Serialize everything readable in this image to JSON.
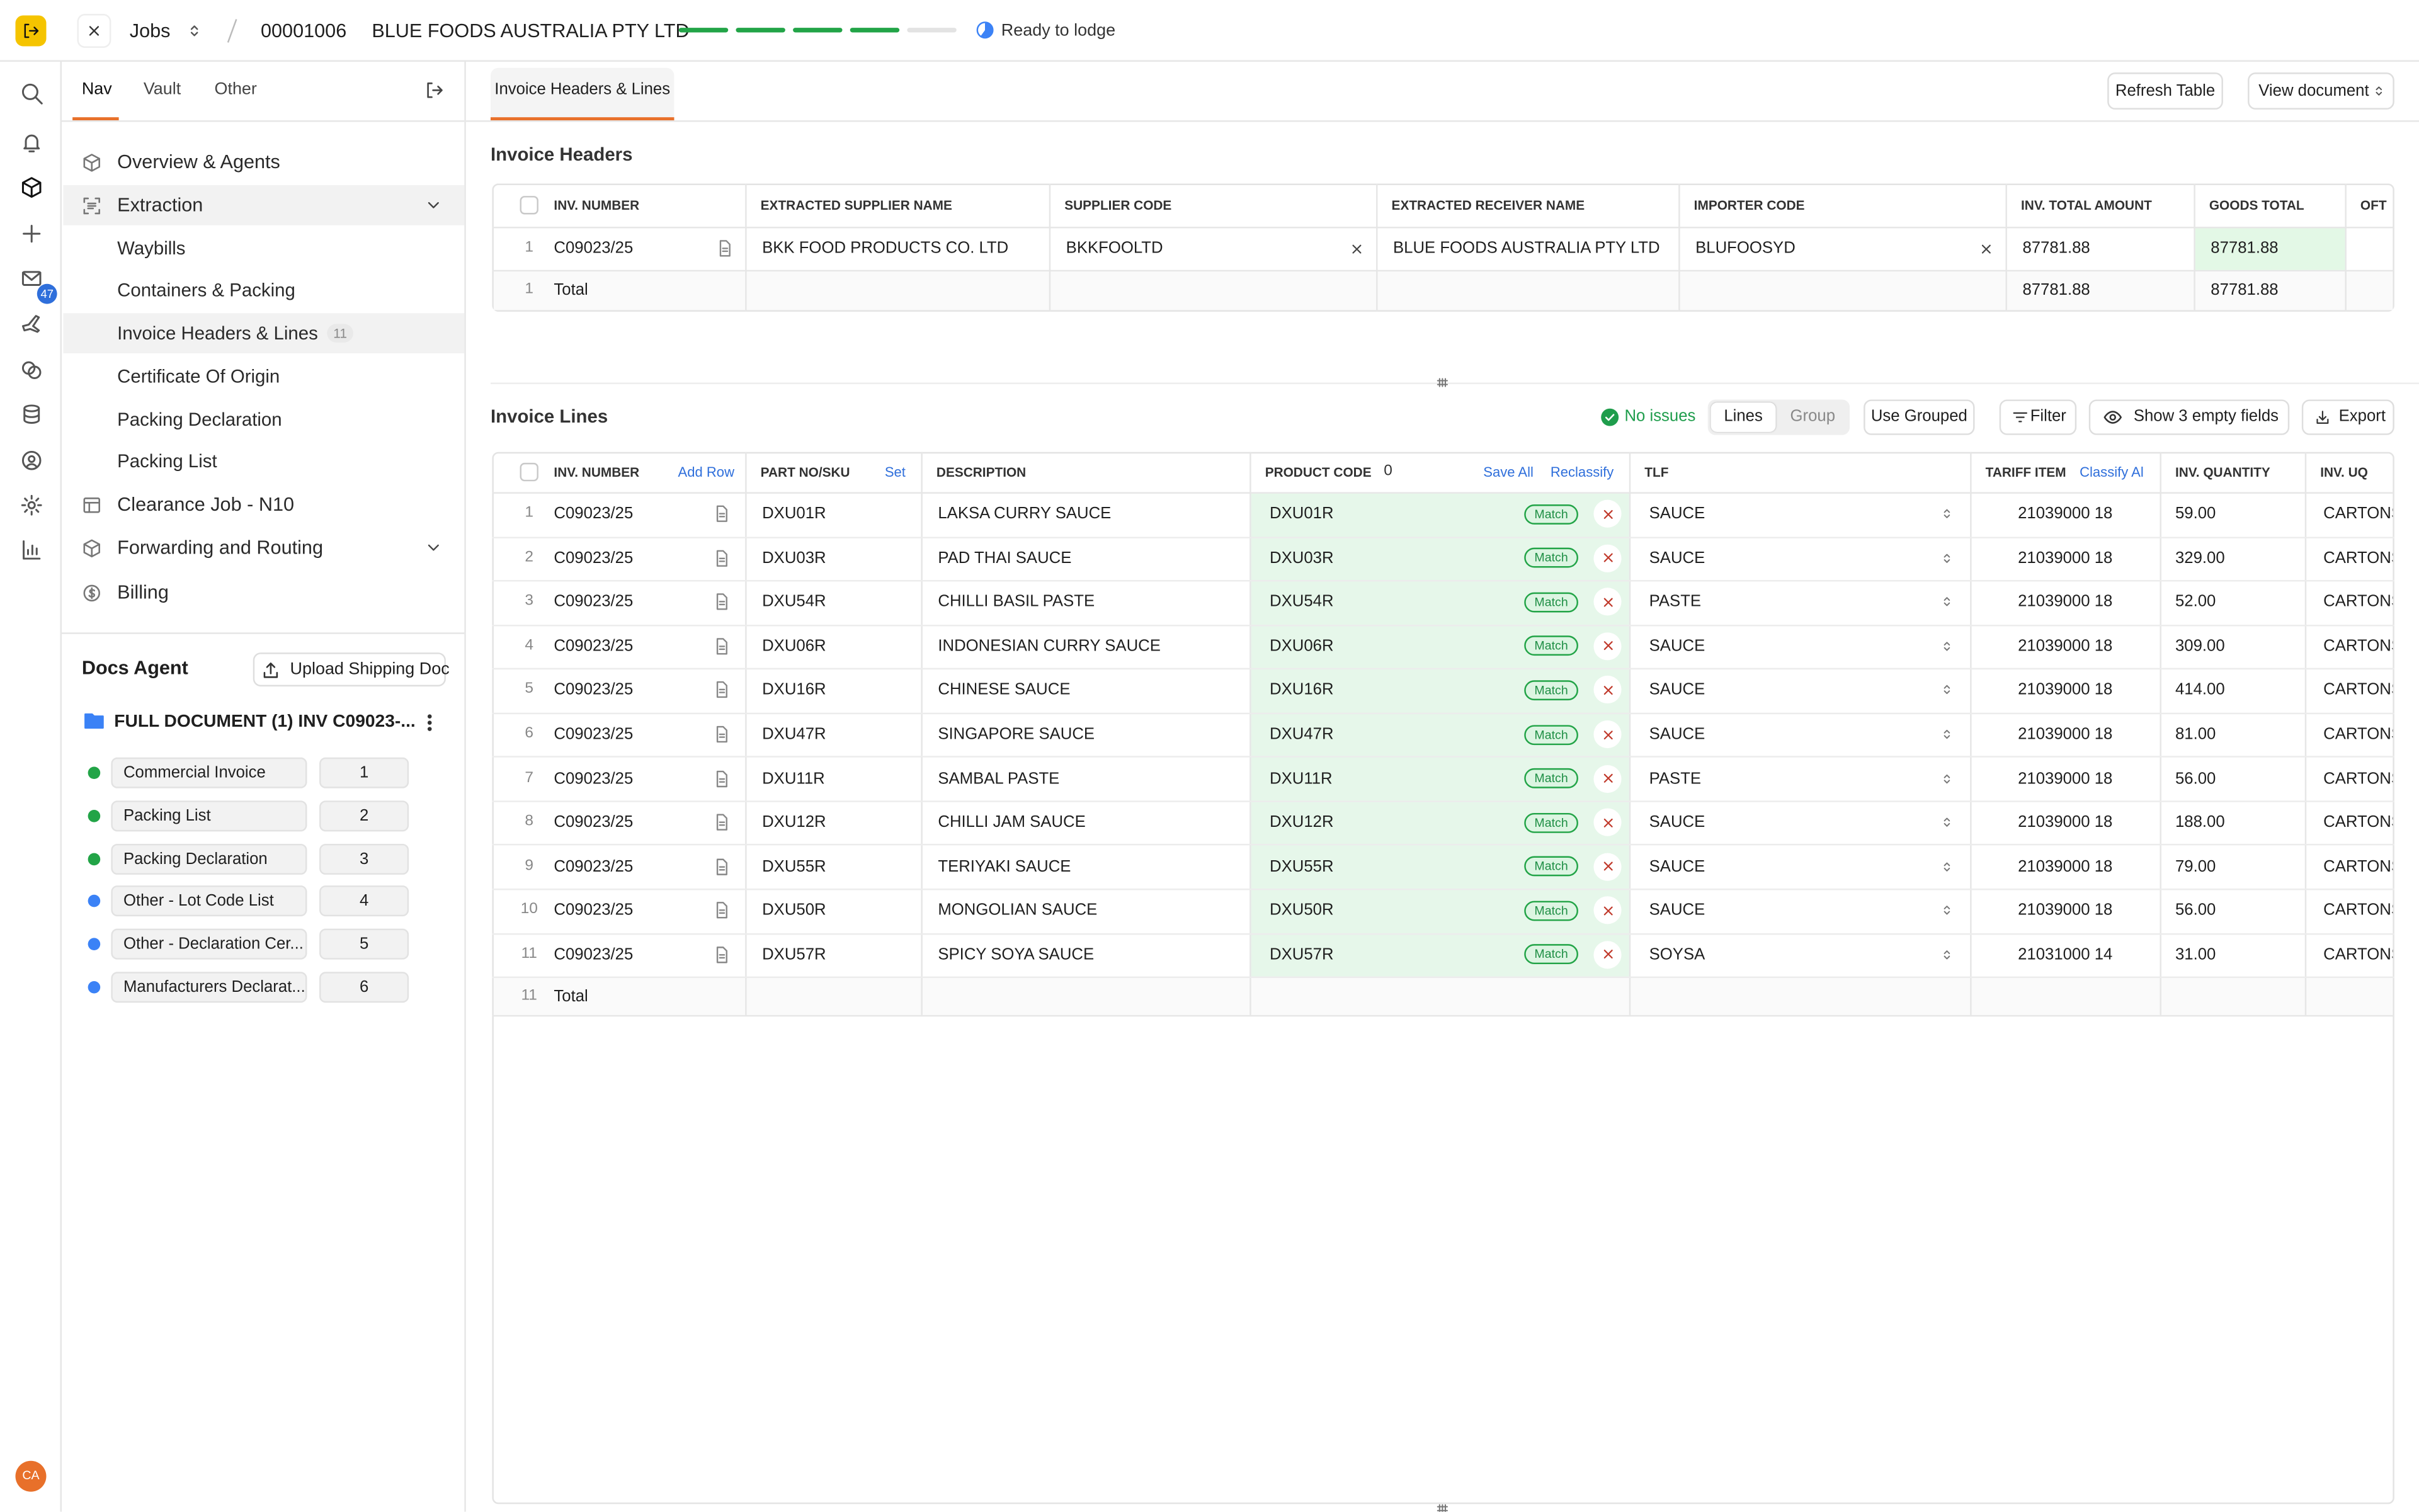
{
  "topbar": {
    "section": "Jobs",
    "job_number": "00001006",
    "company": "BLUE FOODS AUSTRALIA PTY LTD",
    "progress_steps": 5,
    "progress_done": 4,
    "status": "Ready to lodge"
  },
  "rail": {
    "badge": "47",
    "avatar": "CA"
  },
  "sidebar": {
    "tabs": [
      "Nav",
      "Vault",
      "Other"
    ],
    "nav": [
      {
        "label": "Overview & Agents",
        "level": 0
      },
      {
        "label": "Extraction",
        "level": 0,
        "expandable": true,
        "selected": true
      },
      {
        "label": "Waybills",
        "level": 1
      },
      {
        "label": "Containers & Packing",
        "level": 1
      },
      {
        "label": "Invoice Headers & Lines",
        "level": 1,
        "count": "11",
        "selected": true
      },
      {
        "label": "Certificate Of Origin",
        "level": 1
      },
      {
        "label": "Packing Declaration",
        "level": 1
      },
      {
        "label": "Packing List",
        "level": 1
      },
      {
        "label": "Clearance Job - N10",
        "level": 0
      },
      {
        "label": "Forwarding and Routing",
        "level": 0,
        "expandable": true
      },
      {
        "label": "Billing",
        "level": 0
      }
    ],
    "docs_agent": {
      "title": "Docs Agent",
      "upload": "Upload Shipping Doc",
      "folder": "FULL DOCUMENT (1) INV C09023-...",
      "docs": [
        {
          "name": "Commercial Invoice",
          "page": 1,
          "color": "#22a447"
        },
        {
          "name": "Packing List",
          "page": 2,
          "color": "#22a447"
        },
        {
          "name": "Packing Declaration",
          "page": 3,
          "color": "#22a447"
        },
        {
          "name": "Other - Lot Code List",
          "page": 4,
          "color": "#3b82f6"
        },
        {
          "name": "Other - Declaration Cer...",
          "page": 5,
          "color": "#3b82f6"
        },
        {
          "name": "Manufacturers Declarat...",
          "page": 6,
          "color": "#3b82f6"
        }
      ]
    }
  },
  "main": {
    "tab": "Invoice Headers & Lines",
    "refresh": "Refresh Table",
    "view_document": "View document",
    "headers": {
      "title": "Invoice Headers",
      "columns": [
        "INV. NUMBER",
        "EXTRACTED SUPPLIER NAME",
        "SUPPLIER CODE",
        "EXTRACTED RECEIVER NAME",
        "IMPORTER CODE",
        "INV. TOTAL AMOUNT",
        "GOODS TOTAL",
        "OFT"
      ],
      "row": {
        "index": 1,
        "inv_number": "C09023/25",
        "cells": [
          "BKK FOOD PRODUCTS CO. LTD",
          "BKKFOOLTD",
          "BLUE FOODS AUSTRALIA PTY LTD",
          "BLUFOOSYD",
          87781.88,
          87781.88
        ]
      },
      "total": {
        "count": 1,
        "label": "Total",
        "inv_total": 87781.88,
        "goods_total": 87781.88
      }
    },
    "lines": {
      "title": "Invoice Lines",
      "issues": "No issues",
      "toggle": [
        "Lines",
        "Group"
      ],
      "use_grouped": "Use Grouped",
      "filter": "Filter",
      "show_empty": "Show 3 empty fields",
      "export": "Export",
      "columns": [
        "INV. NUMBER",
        "PART NO/SKU",
        "DESCRIPTION",
        "PRODUCT CODE",
        "TLF",
        "TARIFF ITEM",
        "INV. QUANTITY",
        "INV. UQ"
      ],
      "add_row": "Add Row",
      "set": "Set",
      "product_code_count": 0,
      "save_all": "Save All",
      "reclassify": "Reclassify",
      "classify_all": "Classify All",
      "rows": [
        {
          "index": 1,
          "inv_number": "C09023/25",
          "part_no": "DXU01R",
          "description": "LAKSA CURRY SAUCE",
          "product_code": "DXU01R",
          "match": "Match",
          "tlf": "SAUCE",
          "tariff_item": "21039000 18",
          "quantity": "59.00",
          "uq": "CARTONS"
        },
        {
          "index": 2,
          "inv_number": "C09023/25",
          "part_no": "DXU03R",
          "description": "PAD THAI SAUCE",
          "product_code": "DXU03R",
          "match": "Match",
          "tlf": "SAUCE",
          "tariff_item": "21039000 18",
          "quantity": "329.00",
          "uq": "CARTONS"
        },
        {
          "index": 3,
          "inv_number": "C09023/25",
          "part_no": "DXU54R",
          "description": "CHILLI BASIL PASTE",
          "product_code": "DXU54R",
          "match": "Match",
          "tlf": "PASTE",
          "tariff_item": "21039000 18",
          "quantity": "52.00",
          "uq": "CARTONS"
        },
        {
          "index": 4,
          "inv_number": "C09023/25",
          "part_no": "DXU06R",
          "description": "INDONESIAN CURRY SAUCE",
          "product_code": "DXU06R",
          "match": "Match",
          "tlf": "SAUCE",
          "tariff_item": "21039000 18",
          "quantity": "309.00",
          "uq": "CARTONS"
        },
        {
          "index": 5,
          "inv_number": "C09023/25",
          "part_no": "DXU16R",
          "description": "CHINESE SAUCE",
          "product_code": "DXU16R",
          "match": "Match",
          "tlf": "SAUCE",
          "tariff_item": "21039000 18",
          "quantity": "414.00",
          "uq": "CARTONS"
        },
        {
          "index": 6,
          "inv_number": "C09023/25",
          "part_no": "DXU47R",
          "description": "SINGAPORE SAUCE",
          "product_code": "DXU47R",
          "match": "Match",
          "tlf": "SAUCE",
          "tariff_item": "21039000 18",
          "quantity": "81.00",
          "uq": "CARTONS"
        },
        {
          "index": 7,
          "inv_number": "C09023/25",
          "part_no": "DXU11R",
          "description": "SAMBAL PASTE",
          "product_code": "DXU11R",
          "match": "Match",
          "tlf": "PASTE",
          "tariff_item": "21039000 18",
          "quantity": "56.00",
          "uq": "CARTONS"
        },
        {
          "index": 8,
          "inv_number": "C09023/25",
          "part_no": "DXU12R",
          "description": "CHILLI JAM SAUCE",
          "product_code": "DXU12R",
          "match": "Match",
          "tlf": "SAUCE",
          "tariff_item": "21039000 18",
          "quantity": "188.00",
          "uq": "CARTONS"
        },
        {
          "index": 9,
          "inv_number": "C09023/25",
          "part_no": "DXU55R",
          "description": "TERIYAKI SAUCE",
          "product_code": "DXU55R",
          "match": "Match",
          "tlf": "SAUCE",
          "tariff_item": "21039000 18",
          "quantity": "79.00",
          "uq": "CARTONS"
        },
        {
          "index": 10,
          "inv_number": "C09023/25",
          "part_no": "DXU50R",
          "description": "MONGOLIAN SAUCE",
          "product_code": "DXU50R",
          "match": "Match",
          "tlf": "SAUCE",
          "tariff_item": "21039000 18",
          "quantity": "56.00",
          "uq": "CARTONS"
        },
        {
          "index": 11,
          "inv_number": "C09023/25",
          "part_no": "DXU57R",
          "description": "SPICY SOYA SAUCE",
          "product_code": "DXU57R",
          "match": "Match",
          "tlf": "SOYSA",
          "tariff_item": "21031000 14",
          "quantity": "31.00",
          "uq": "CARTONS"
        }
      ],
      "total": {
        "count": 11,
        "label": "Total"
      }
    }
  }
}
